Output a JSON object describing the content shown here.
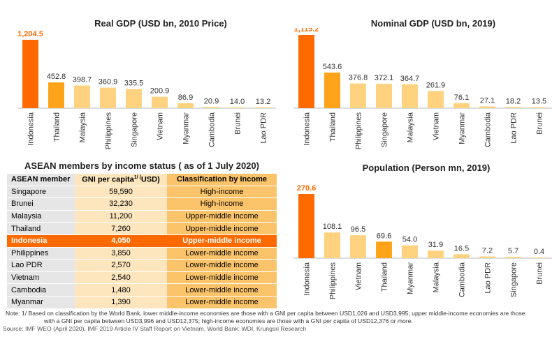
{
  "colors": {
    "highlight": "#ff6a00",
    "secondary": "#ffa31a",
    "default": "#ffd27f"
  },
  "chart_data": [
    {
      "type": "bar",
      "title": "Real GDP (USD bn, 2010 Price)",
      "categories": [
        "Indonesia",
        "Thailand",
        "Malaysia",
        "Philippines",
        "Singapore",
        "Vietnam",
        "Myanmar",
        "Cambodia",
        "Brunei",
        "Lao PDR"
      ],
      "values": [
        1204.5,
        452.8,
        398.7,
        360.9,
        335.5,
        200.9,
        86.9,
        20.9,
        14.0,
        13.2
      ],
      "labels": [
        "1,204.5",
        "452.8",
        "398.7",
        "360.9",
        "335.5",
        "200.9",
        "86.9",
        "20.9",
        "14.0",
        "13.2"
      ],
      "highlight": {
        "Indonesia": "highlight",
        "Thailand": "secondary"
      }
    },
    {
      "type": "bar",
      "title": "Nominal GDP (USD bn, 2019)",
      "categories": [
        "Indonesia",
        "Thailand",
        "Philippines",
        "Singapore",
        "Malaysia",
        "Vietnam",
        "Myanmar",
        "Cambodia",
        "Lao PDR",
        "Brunei"
      ],
      "values": [
        1119.2,
        543.6,
        376.8,
        372.1,
        364.7,
        261.9,
        76.1,
        27.1,
        18.2,
        13.5
      ],
      "labels": [
        "1,119.2",
        "543.6",
        "376.8",
        "372.1",
        "364.7",
        "261.9",
        "76.1",
        "27.1",
        "18.2",
        "13.5"
      ],
      "highlight": {
        "Indonesia": "highlight",
        "Thailand": "secondary"
      }
    },
    {
      "type": "bar",
      "title": "Population (Person mn, 2019)",
      "categories": [
        "Indonesia",
        "Philippines",
        "Vietnam",
        "Thailand",
        "Myanmar",
        "Malaysia",
        "Cambodia",
        "Lao PDR",
        "Singapore",
        "Brunei"
      ],
      "values": [
        270.6,
        108.1,
        96.5,
        69.6,
        54.0,
        31.9,
        16.5,
        7.2,
        5.7,
        0.4
      ],
      "labels": [
        "270.6",
        "108.1",
        "96.5",
        "69.6",
        "54.0",
        "31.9",
        "16.5",
        "7.2",
        "5.7",
        "0.4"
      ],
      "highlight": {
        "Indonesia": "highlight",
        "Thailand": "secondary"
      }
    }
  ],
  "table": {
    "title": "ASEAN members by income status ( as of 1 July 2020)",
    "headers": [
      "ASEAN member",
      "GNI per capita",
      "1/ (",
      "USD)",
      "Classification by income"
    ],
    "rows": [
      [
        "Singapore",
        "59,590",
        "High-income"
      ],
      [
        "Brunei",
        "32,230",
        "High-income"
      ],
      [
        "Malaysia",
        "11,200",
        "Upper-middle income"
      ],
      [
        "Thailand",
        "7,260",
        "Upper-middle income"
      ],
      [
        "Indonesia",
        "4,050",
        "Upper-middle income"
      ],
      [
        "Philippines",
        "3,850",
        "Lower-middle income"
      ],
      [
        "Lao PDR",
        "2,570",
        "Lower-middle income"
      ],
      [
        "Vietnam",
        "2,540",
        "Lower-middle income"
      ],
      [
        "Cambodia",
        "1,480",
        "Lower-middle income"
      ],
      [
        "Myanmar",
        "1,390",
        "Lower-middle income"
      ]
    ],
    "highlight_row": "Indonesia"
  },
  "note": "Note:   1/ Based on classification by the World Bank, lower middle-income economies are those with a GNI per capita between USD1,026 and USD3,995; upper middle-income economies are those",
  "note2": "with a GNI per capita between USD3,996 and USD12,375; high-income economies are those with a GNI per capita of USD12,376 or more.",
  "source": "Source: IMF WEO (April 2020),  IMF 2019 Article IV Staff Report on Vietnam, World Bank: WDI, Krungsri Research"
}
